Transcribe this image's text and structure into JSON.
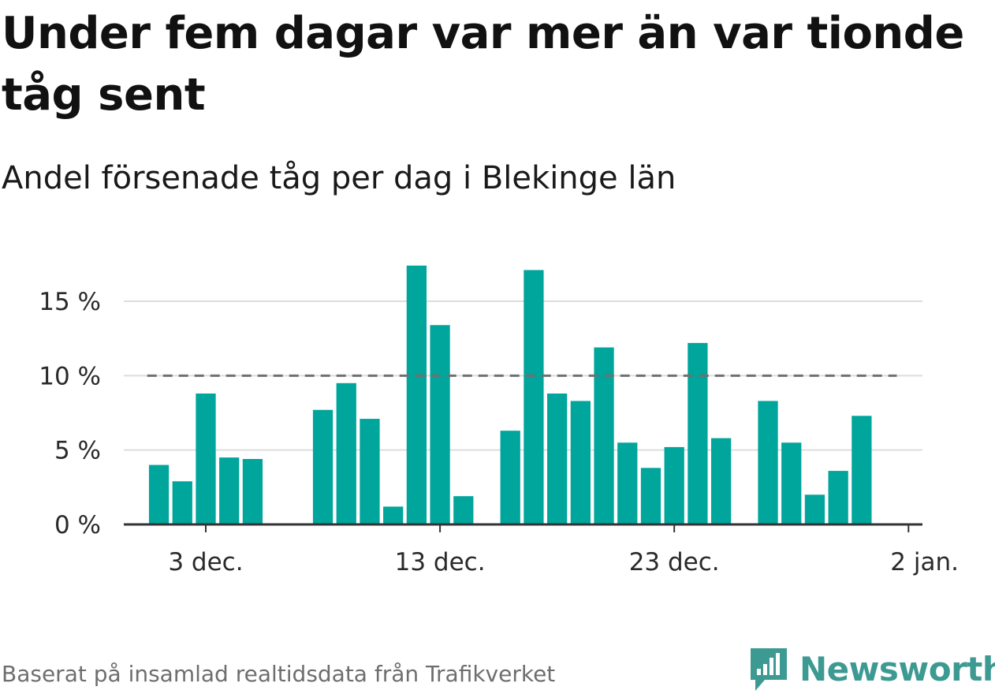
{
  "header": {
    "title": "Under fem dagar var mer än var tionde tåg sent",
    "subtitle": "Andel försenade tåg per dag i Blekinge län"
  },
  "footer": {
    "source": "Baserat på insamlad realtidsdata från Trafikverket",
    "brand": "Newsworthy"
  },
  "colors": {
    "bar": "#00a59b",
    "reference_line": "#707070",
    "gridline": "#dddddd",
    "axis": "#333333",
    "brand": "#3d9a92"
  },
  "chart_data": {
    "type": "bar",
    "x_tick_labels": [
      "3 dec.",
      "13 dec.",
      "23 dec.",
      "2 jan."
    ],
    "y_tick_labels": [
      "0 %",
      "5 %",
      "10 %",
      "15 %"
    ],
    "y_ticks": [
      0,
      5,
      10,
      15
    ],
    "ylim": [
      0,
      17.6
    ],
    "unit": "%",
    "grid": true,
    "reference_line": {
      "y": 10,
      "style": "dashed"
    },
    "series": [
      {
        "values": [
          {
            "date": "2023-12-02",
            "value": 4.0
          },
          {
            "date": "2023-12-03",
            "value": 2.9
          },
          {
            "date": "2023-12-04",
            "value": 8.8
          },
          {
            "date": "2023-12-05",
            "value": 4.5
          },
          {
            "date": "2023-12-06",
            "value": 4.4
          },
          {
            "date": "2023-12-09",
            "value": 7.7
          },
          {
            "date": "2023-12-10",
            "value": 9.5
          },
          {
            "date": "2023-12-11",
            "value": 7.1
          },
          {
            "date": "2023-12-12",
            "value": 1.2
          },
          {
            "date": "2023-12-13",
            "value": 17.4
          },
          {
            "date": "2023-12-14",
            "value": 13.4
          },
          {
            "date": "2023-12-15",
            "value": 1.9
          },
          {
            "date": "2023-12-17",
            "value": 6.3
          },
          {
            "date": "2023-12-18",
            "value": 17.1
          },
          {
            "date": "2023-12-19",
            "value": 8.8
          },
          {
            "date": "2023-12-20",
            "value": 8.3
          },
          {
            "date": "2023-12-21",
            "value": 11.9
          },
          {
            "date": "2023-12-22",
            "value": 5.5
          },
          {
            "date": "2023-12-23",
            "value": 3.8
          },
          {
            "date": "2023-12-24",
            "value": 5.2
          },
          {
            "date": "2023-12-25",
            "value": 12.2
          },
          {
            "date": "2023-12-26",
            "value": 5.8
          },
          {
            "date": "2023-12-28",
            "value": 8.3
          },
          {
            "date": "2023-12-29",
            "value": 5.5
          },
          {
            "date": "2023-12-30",
            "value": 2.0
          },
          {
            "date": "2023-12-31",
            "value": 3.6
          },
          {
            "date": "2024-01-01",
            "value": 7.3
          }
        ]
      }
    ]
  }
}
